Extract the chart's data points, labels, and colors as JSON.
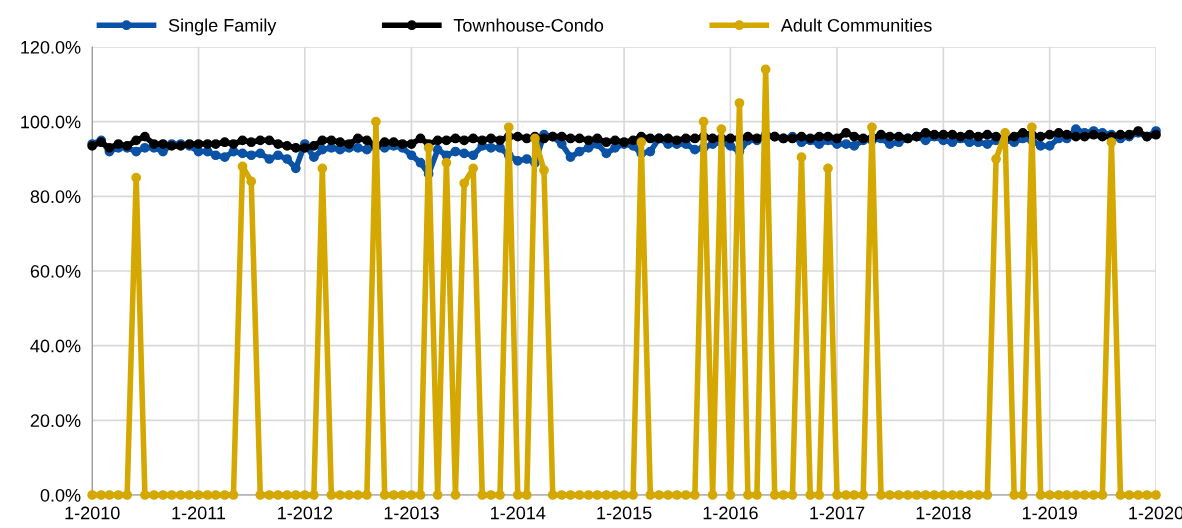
{
  "chart_data": {
    "type": "line",
    "x": [
      "2010-01",
      "2010-02",
      "2010-03",
      "2010-04",
      "2010-05",
      "2010-06",
      "2010-07",
      "2010-08",
      "2010-09",
      "2010-10",
      "2010-11",
      "2010-12",
      "2011-01",
      "2011-02",
      "2011-03",
      "2011-04",
      "2011-05",
      "2011-06",
      "2011-07",
      "2011-08",
      "2011-09",
      "2011-10",
      "2011-11",
      "2011-12",
      "2012-01",
      "2012-02",
      "2012-03",
      "2012-04",
      "2012-05",
      "2012-06",
      "2012-07",
      "2012-08",
      "2012-09",
      "2012-10",
      "2012-11",
      "2012-12",
      "2013-01",
      "2013-02",
      "2013-03",
      "2013-04",
      "2013-05",
      "2013-06",
      "2013-07",
      "2013-08",
      "2013-09",
      "2013-10",
      "2013-11",
      "2013-12",
      "2014-01",
      "2014-02",
      "2014-03",
      "2014-04",
      "2014-05",
      "2014-06",
      "2014-07",
      "2014-08",
      "2014-09",
      "2014-10",
      "2014-11",
      "2014-12",
      "2015-01",
      "2015-02",
      "2015-03",
      "2015-04",
      "2015-05",
      "2015-06",
      "2015-07",
      "2015-08",
      "2015-09",
      "2015-10",
      "2015-11",
      "2015-12",
      "2016-01",
      "2016-02",
      "2016-03",
      "2016-04",
      "2016-05",
      "2016-06",
      "2016-07",
      "2016-08",
      "2016-09",
      "2016-10",
      "2016-11",
      "2016-12",
      "2017-01",
      "2017-02",
      "2017-03",
      "2017-04",
      "2017-05",
      "2017-06",
      "2017-07",
      "2017-08",
      "2017-09",
      "2017-10",
      "2017-11",
      "2017-12",
      "2018-01",
      "2018-02",
      "2018-03",
      "2018-04",
      "2018-05",
      "2018-06",
      "2018-07",
      "2018-08",
      "2018-09",
      "2018-10",
      "2018-11",
      "2018-12",
      "2019-01",
      "2019-02",
      "2019-03",
      "2019-04",
      "2019-05",
      "2019-06",
      "2019-07",
      "2019-08",
      "2019-09",
      "2019-10",
      "2019-11",
      "2019-12",
      "2020-01"
    ],
    "series": [
      {
        "name": "Single Family",
        "color": "#0a52a5",
        "values": [
          94,
          95,
          92,
          93,
          93,
          92,
          93,
          93,
          92,
          94,
          94,
          93.5,
          92,
          92,
          91,
          90.5,
          92,
          91.5,
          91,
          91.5,
          90,
          91,
          90,
          87.5,
          94,
          90.5,
          92.5,
          93,
          92.5,
          93,
          93,
          92.5,
          93.5,
          93,
          93.5,
          93,
          91,
          89,
          86,
          92.5,
          91,
          92,
          91.5,
          91,
          93.5,
          93,
          93,
          91,
          89.5,
          90,
          89,
          96.5,
          96,
          94,
          90.5,
          92,
          93,
          94,
          91.5,
          93,
          94,
          93.5,
          91.5,
          92,
          95.5,
          94,
          94,
          94,
          92.5,
          93,
          94,
          94.5,
          93.5,
          92,
          95,
          95,
          96.5,
          96,
          95.5,
          96,
          94.5,
          95,
          94,
          95,
          94,
          94,
          93.5,
          95,
          95,
          95.5,
          94,
          94.5,
          95.5,
          96,
          95,
          96,
          95,
          94.5,
          95.5,
          94.5,
          94.5,
          94,
          95,
          95,
          94.5,
          95.5,
          95,
          93.5,
          93.5,
          95.5,
          95.5,
          98,
          97,
          97.5,
          97,
          96.5,
          95.5,
          96,
          97,
          96,
          97.5
        ]
      },
      {
        "name": "Townhouse-Condo",
        "color": "#000000",
        "values": [
          93.5,
          94.5,
          93,
          94,
          93.5,
          95,
          96,
          94,
          94,
          93.5,
          93.5,
          94,
          94,
          94,
          94,
          94.5,
          94,
          95,
          94.5,
          95,
          95,
          94,
          93.5,
          93,
          93,
          93.5,
          95,
          95,
          94.5,
          94,
          95.5,
          95,
          93.5,
          94.5,
          94.5,
          94,
          94,
          95.5,
          94,
          95,
          95,
          95.5,
          95,
          95.5,
          95,
          95.5,
          95,
          96,
          96,
          95.5,
          96,
          95.5,
          96,
          96,
          95.5,
          95.5,
          95,
          95.5,
          94.5,
          95,
          94.5,
          95,
          96,
          95.5,
          95.5,
          95.5,
          95,
          95.5,
          95.5,
          96,
          95.5,
          95.5,
          95.5,
          95.5,
          96,
          95.5,
          96,
          96,
          95.5,
          95.5,
          96,
          95.5,
          96,
          96,
          95.5,
          97,
          96,
          95.5,
          95.5,
          96.5,
          96,
          96,
          95.5,
          96,
          97,
          96.5,
          96.5,
          96.5,
          96,
          96.5,
          96,
          96.5,
          96,
          95.5,
          96,
          97,
          96.5,
          96,
          96.5,
          97,
          96.5,
          96,
          96,
          96.5,
          96,
          96,
          96.5,
          96.5,
          97.5,
          96,
          96.5
        ]
      },
      {
        "name": "Adult Communities",
        "color": "#d4a800",
        "values": [
          0,
          0,
          0,
          0,
          0,
          85,
          0,
          0,
          0,
          0,
          0,
          0,
          0,
          0,
          0,
          0,
          0,
          88,
          84,
          0,
          0,
          0,
          0,
          0,
          0,
          0,
          87.5,
          0,
          0,
          0,
          0,
          0,
          100,
          0,
          0,
          0,
          0,
          0,
          93,
          0,
          89,
          0,
          83.5,
          87.5,
          0,
          0,
          0,
          98.5,
          0,
          0,
          95.5,
          87,
          0,
          0,
          0,
          0,
          0,
          0,
          0,
          0,
          0,
          0,
          94.5,
          0,
          0,
          0,
          0,
          0,
          0,
          100,
          0,
          98,
          0,
          105,
          0,
          0,
          114,
          0,
          0,
          0,
          90.5,
          0,
          0,
          87.5,
          0,
          0,
          0,
          0,
          98.5,
          0,
          0,
          0,
          0,
          0,
          0,
          0,
          0,
          0,
          0,
          0,
          0,
          0,
          90,
          97,
          0,
          0,
          98.5,
          0,
          0,
          0,
          0,
          0,
          0,
          0,
          0,
          94.5,
          0,
          0,
          0,
          0,
          0
        ]
      }
    ],
    "xlim": [
      "2010-01",
      "2020-01"
    ],
    "xticks": [
      {
        "value": "2010-01",
        "label": "1-2010"
      },
      {
        "value": "2011-01",
        "label": "1-2011"
      },
      {
        "value": "2012-01",
        "label": "1-2012"
      },
      {
        "value": "2013-01",
        "label": "1-2013"
      },
      {
        "value": "2014-01",
        "label": "1-2014"
      },
      {
        "value": "2015-01",
        "label": "1-2015"
      },
      {
        "value": "2016-01",
        "label": "1-2016"
      },
      {
        "value": "2017-01",
        "label": "1-2017"
      },
      {
        "value": "2018-01",
        "label": "1-2018"
      },
      {
        "value": "2019-01",
        "label": "1-2019"
      },
      {
        "value": "2020-01",
        "label": "1-2020"
      }
    ],
    "ylim": [
      0,
      120
    ],
    "yticks": [
      {
        "value": 0,
        "label": "0.0%"
      },
      {
        "value": 20,
        "label": "20.0%"
      },
      {
        "value": 40,
        "label": "40.0%"
      },
      {
        "value": 60,
        "label": "60.0%"
      },
      {
        "value": 80,
        "label": "80.0%"
      },
      {
        "value": 100,
        "label": "100.0%"
      },
      {
        "value": 120,
        "label": "120.0%"
      }
    ],
    "grid": true,
    "legend": "top",
    "marker": "circle",
    "line_style": "solid"
  }
}
